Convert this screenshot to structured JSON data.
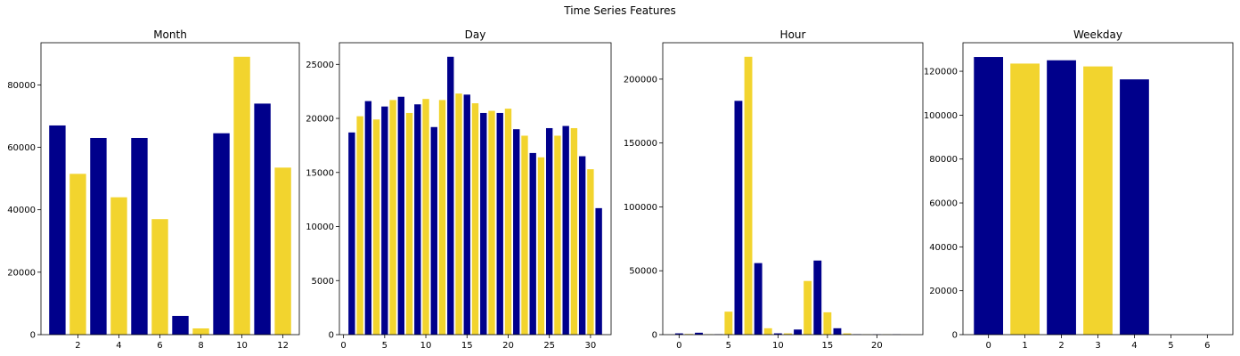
{
  "suptitle": "Time Series Features",
  "colors": {
    "navy": "#00008b",
    "gold": "#f2d42e"
  },
  "chart_data": [
    {
      "type": "bar",
      "title": "Month",
      "x": [
        1,
        2,
        3,
        4,
        5,
        6,
        7,
        8,
        9,
        10,
        11,
        12
      ],
      "values": [
        67000,
        51500,
        63000,
        44000,
        63000,
        37000,
        6000,
        2000,
        64500,
        89000,
        74000,
        53500
      ],
      "xlim": [
        0.2,
        12.8
      ],
      "ylim": [
        0,
        93500
      ],
      "xticks": [
        2,
        4,
        6,
        8,
        10,
        12
      ],
      "yticks": [
        0,
        20000,
        40000,
        60000,
        80000
      ]
    },
    {
      "type": "bar",
      "title": "Day",
      "x": [
        1,
        2,
        3,
        4,
        5,
        6,
        7,
        8,
        9,
        10,
        11,
        12,
        13,
        14,
        15,
        16,
        17,
        18,
        19,
        20,
        21,
        22,
        23,
        24,
        25,
        26,
        27,
        28,
        29,
        30,
        31
      ],
      "values": [
        18700,
        20200,
        21600,
        19900,
        21100,
        21700,
        22000,
        20500,
        21300,
        21800,
        19200,
        21700,
        25700,
        22300,
        22200,
        21400,
        20500,
        20700,
        20500,
        20900,
        19000,
        18400,
        16800,
        16400,
        19100,
        18400,
        19300,
        19100,
        16500,
        15300,
        11700
      ],
      "xlim": [
        -0.5,
        32.5
      ],
      "ylim": [
        0,
        27000
      ],
      "xticks": [
        0,
        5,
        10,
        15,
        20,
        25,
        30
      ],
      "yticks": [
        0,
        5000,
        10000,
        15000,
        20000,
        25000
      ]
    },
    {
      "type": "bar",
      "title": "Hour",
      "x": [
        0,
        1,
        2,
        3,
        4,
        5,
        6,
        7,
        8,
        9,
        10,
        11,
        12,
        13,
        14,
        15,
        16,
        17,
        18,
        19,
        20,
        21,
        22,
        23
      ],
      "values": [
        1000,
        500,
        1500,
        300,
        300,
        18000,
        183000,
        217500,
        56000,
        5000,
        1000,
        1000,
        4000,
        42000,
        58000,
        17500,
        5000,
        1000,
        300,
        200,
        200,
        200,
        200,
        100
      ],
      "xlim": [
        -1.65,
        24.65
      ],
      "ylim": [
        0,
        228500
      ],
      "xticks": [
        0,
        5,
        10,
        15,
        20
      ],
      "yticks": [
        0,
        50000,
        100000,
        150000,
        200000
      ]
    },
    {
      "type": "bar",
      "title": "Weekday",
      "x": [
        0,
        1,
        2,
        3,
        4,
        5,
        6
      ],
      "values": [
        126500,
        123500,
        125000,
        122200,
        116300,
        0,
        0
      ],
      "xlim": [
        -0.7,
        6.7
      ],
      "ylim": [
        0,
        133000
      ],
      "xticks": [
        0,
        1,
        2,
        3,
        4,
        5,
        6
      ],
      "yticks": [
        0,
        20000,
        40000,
        60000,
        80000,
        100000,
        120000
      ]
    }
  ]
}
